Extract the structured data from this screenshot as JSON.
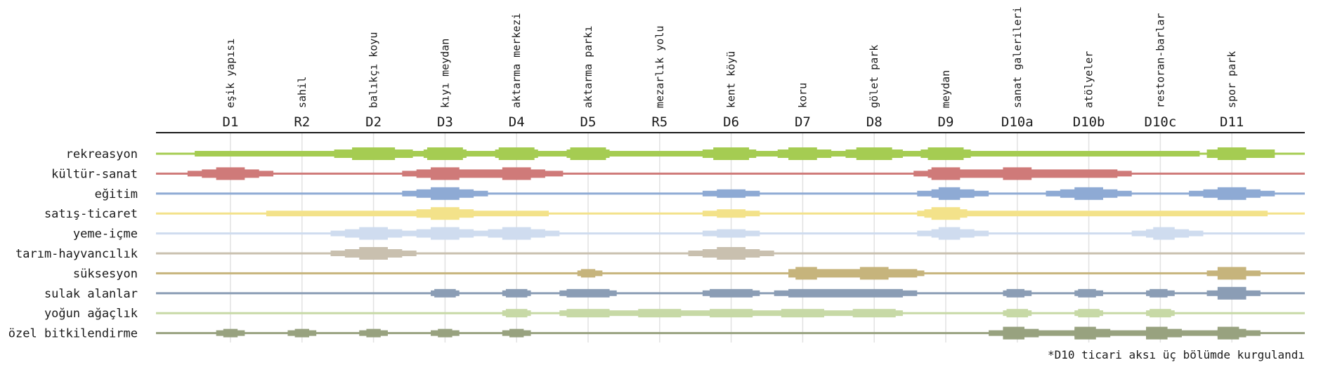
{
  "chart_data": {
    "type": "heatmap",
    "subtype": "variable-width band timeline",
    "title": "",
    "level_scale": {
      "0": "none (thin line)",
      "1": "low",
      "2": "medium",
      "3": "high"
    },
    "columns": [
      {
        "code": "D1",
        "name": "eşik yapısı"
      },
      {
        "code": "R2",
        "name": "sahil"
      },
      {
        "code": "D2",
        "name": "balıkçı koyu"
      },
      {
        "code": "D3",
        "name": "kıyı meydan"
      },
      {
        "code": "D4",
        "name": "aktarma merkezi"
      },
      {
        "code": "D5",
        "name": "aktarma parkı"
      },
      {
        "code": "R5",
        "name": "mezarlık yolu"
      },
      {
        "code": "D6",
        "name": "kent köyü"
      },
      {
        "code": "D7",
        "name": "koru"
      },
      {
        "code": "D8",
        "name": "gölet park"
      },
      {
        "code": "D9",
        "name": "meydan"
      },
      {
        "code": "D10a",
        "name": "sanat galerileri"
      },
      {
        "code": "D10b",
        "name": "atölyeler"
      },
      {
        "code": "D10c",
        "name": "restoran-barlar"
      },
      {
        "code": "D11",
        "name": "spor park"
      }
    ],
    "series": [
      {
        "name": "rekreasyon",
        "color": "#a5cc52",
        "segments": [
          [
            -0.5,
            13.55,
            1
          ],
          [
            1.45,
            2.55,
            2
          ],
          [
            1.7,
            2.3,
            3
          ],
          [
            2.7,
            3.3,
            2
          ],
          [
            2.75,
            3.25,
            3
          ],
          [
            3.7,
            4.3,
            2
          ],
          [
            3.75,
            4.25,
            3
          ],
          [
            4.7,
            5.3,
            2
          ],
          [
            4.75,
            5.25,
            3
          ],
          [
            6.6,
            7.35,
            2
          ],
          [
            6.75,
            7.25,
            3
          ],
          [
            7.65,
            8.4,
            2
          ],
          [
            7.8,
            8.2,
            3
          ],
          [
            8.6,
            9.4,
            2
          ],
          [
            8.75,
            9.25,
            3
          ],
          [
            9.65,
            10.35,
            2
          ],
          [
            9.75,
            10.25,
            3
          ],
          [
            13.65,
            14.6,
            2
          ],
          [
            13.8,
            14.2,
            3
          ]
        ]
      },
      {
        "name": "kültür-sanat",
        "color": "#cf7a79",
        "segments": [
          [
            -0.6,
            0.6,
            1
          ],
          [
            -0.4,
            0.4,
            2
          ],
          [
            -0.2,
            0.2,
            3
          ],
          [
            2.4,
            4.65,
            1
          ],
          [
            2.6,
            4.4,
            2
          ],
          [
            2.8,
            3.2,
            3
          ],
          [
            3.8,
            4.2,
            3
          ],
          [
            9.55,
            12.6,
            1
          ],
          [
            9.75,
            12.4,
            2
          ],
          [
            9.8,
            10.2,
            3
          ],
          [
            10.8,
            11.2,
            3
          ]
        ]
      },
      {
        "name": "eğitim",
        "color": "#8eaad4",
        "segments": [
          [
            2.4,
            3.6,
            1
          ],
          [
            2.6,
            3.4,
            2
          ],
          [
            2.8,
            3.2,
            3
          ],
          [
            6.6,
            7.4,
            1
          ],
          [
            6.8,
            7.2,
            2
          ],
          [
            9.6,
            10.6,
            1
          ],
          [
            9.8,
            10.4,
            2
          ],
          [
            9.9,
            10.2,
            3
          ],
          [
            11.4,
            12.6,
            1
          ],
          [
            11.6,
            12.4,
            2
          ],
          [
            11.8,
            12.2,
            3
          ],
          [
            13.4,
            14.6,
            1
          ],
          [
            13.6,
            14.4,
            2
          ],
          [
            13.8,
            14.2,
            3
          ]
        ]
      },
      {
        "name": "satış-ticaret",
        "color": "#f3e28a",
        "segments": [
          [
            0.5,
            4.45,
            1
          ],
          [
            2.6,
            3.4,
            2
          ],
          [
            2.8,
            3.2,
            3
          ],
          [
            6.6,
            7.4,
            1
          ],
          [
            6.8,
            7.2,
            2
          ],
          [
            9.6,
            14.5,
            1
          ],
          [
            9.7,
            10.3,
            2
          ],
          [
            9.8,
            10.2,
            3
          ]
        ]
      },
      {
        "name": "yeme-içme",
        "color": "#cfdcef",
        "segments": [
          [
            1.4,
            4.6,
            1
          ],
          [
            1.6,
            2.4,
            2
          ],
          [
            1.8,
            2.2,
            3
          ],
          [
            2.6,
            3.4,
            2
          ],
          [
            2.8,
            3.2,
            3
          ],
          [
            3.6,
            4.4,
            2
          ],
          [
            3.8,
            4.2,
            3
          ],
          [
            6.6,
            7.4,
            1
          ],
          [
            6.8,
            7.2,
            2
          ],
          [
            9.6,
            10.6,
            1
          ],
          [
            9.8,
            10.4,
            2
          ],
          [
            9.9,
            10.2,
            3
          ],
          [
            12.6,
            13.6,
            1
          ],
          [
            12.8,
            13.4,
            2
          ],
          [
            12.9,
            13.2,
            3
          ]
        ]
      },
      {
        "name": "tarım-hayvancılık",
        "color": "#c9c0af",
        "segments": [
          [
            1.4,
            2.6,
            1
          ],
          [
            1.6,
            2.4,
            2
          ],
          [
            1.8,
            2.2,
            3
          ],
          [
            6.4,
            7.6,
            1
          ],
          [
            6.6,
            7.4,
            2
          ],
          [
            6.8,
            7.2,
            3
          ]
        ]
      },
      {
        "name": "süksesyon",
        "color": "#c6b47c",
        "segments": [
          [
            4.85,
            5.2,
            1
          ],
          [
            4.9,
            5.1,
            2
          ],
          [
            8.0,
            9.7,
            1
          ],
          [
            7.8,
            9.6,
            2
          ],
          [
            7.9,
            8.2,
            3
          ],
          [
            8.8,
            9.2,
            3
          ],
          [
            13.65,
            14.4,
            1
          ],
          [
            13.8,
            14.2,
            3
          ]
        ]
      },
      {
        "name": "sulak alanlar",
        "color": "#8b9db5",
        "segments": [
          [
            2.8,
            3.2,
            1
          ],
          [
            2.85,
            3.15,
            2
          ],
          [
            3.8,
            4.2,
            1
          ],
          [
            3.85,
            4.15,
            2
          ],
          [
            4.6,
            5.4,
            1
          ],
          [
            4.7,
            5.3,
            2
          ],
          [
            6.6,
            7.4,
            1
          ],
          [
            6.7,
            7.3,
            2
          ],
          [
            7.6,
            9.6,
            1
          ],
          [
            7.8,
            9.4,
            2
          ],
          [
            11.8,
            12.2,
            1
          ],
          [
            11.85,
            12.1,
            2
          ],
          [
            12.8,
            13.2,
            1
          ],
          [
            12.85,
            13.1,
            2
          ],
          [
            13.8,
            14.2,
            1
          ],
          [
            13.85,
            14.1,
            2
          ],
          [
            13.65,
            14.4,
            1
          ],
          [
            13.8,
            14.2,
            3
          ],
          [
            10.8,
            11.2,
            1
          ],
          [
            10.85,
            11.1,
            2
          ]
        ]
      },
      {
        "name": "yoğun ağaçlık",
        "color": "#c7d9a6",
        "segments": [
          [
            3.8,
            4.2,
            1
          ],
          [
            3.85,
            4.15,
            2
          ],
          [
            4.6,
            9.4,
            1
          ],
          [
            4.7,
            5.3,
            2
          ],
          [
            5.7,
            6.3,
            2
          ],
          [
            6.7,
            7.3,
            2
          ],
          [
            7.7,
            8.3,
            2
          ],
          [
            8.7,
            9.3,
            2
          ],
          [
            10.8,
            11.2,
            1
          ],
          [
            10.85,
            11.15,
            2
          ],
          [
            11.8,
            12.2,
            1
          ],
          [
            11.85,
            12.15,
            2
          ],
          [
            12.8,
            13.2,
            1
          ],
          [
            12.85,
            13.15,
            2
          ]
        ]
      },
      {
        "name": "özel bitkilendirme",
        "color": "#98a27f",
        "segments": [
          [
            -0.2,
            0.2,
            1
          ],
          [
            -0.1,
            0.1,
            2
          ],
          [
            0.8,
            1.2,
            1
          ],
          [
            0.9,
            1.1,
            2
          ],
          [
            1.8,
            2.2,
            1
          ],
          [
            1.9,
            2.1,
            2
          ],
          [
            2.8,
            3.2,
            1
          ],
          [
            2.9,
            3.1,
            2
          ],
          [
            3.8,
            4.2,
            1
          ],
          [
            3.9,
            4.1,
            2
          ],
          [
            10.6,
            14.4,
            1
          ],
          [
            10.8,
            11.3,
            2
          ],
          [
            11.8,
            12.3,
            2
          ],
          [
            12.8,
            13.3,
            2
          ],
          [
            13.8,
            14.2,
            2
          ],
          [
            10.8,
            11.1,
            3
          ],
          [
            11.8,
            12.1,
            3
          ],
          [
            12.8,
            13.1,
            3
          ],
          [
            13.8,
            14.1,
            3
          ]
        ]
      }
    ],
    "annotations": [
      "*D10 ticari aksı üç bölümde kurgulandı"
    ],
    "grid": "vertical gridlines at each column",
    "legend": "none (row labels on left)"
  }
}
